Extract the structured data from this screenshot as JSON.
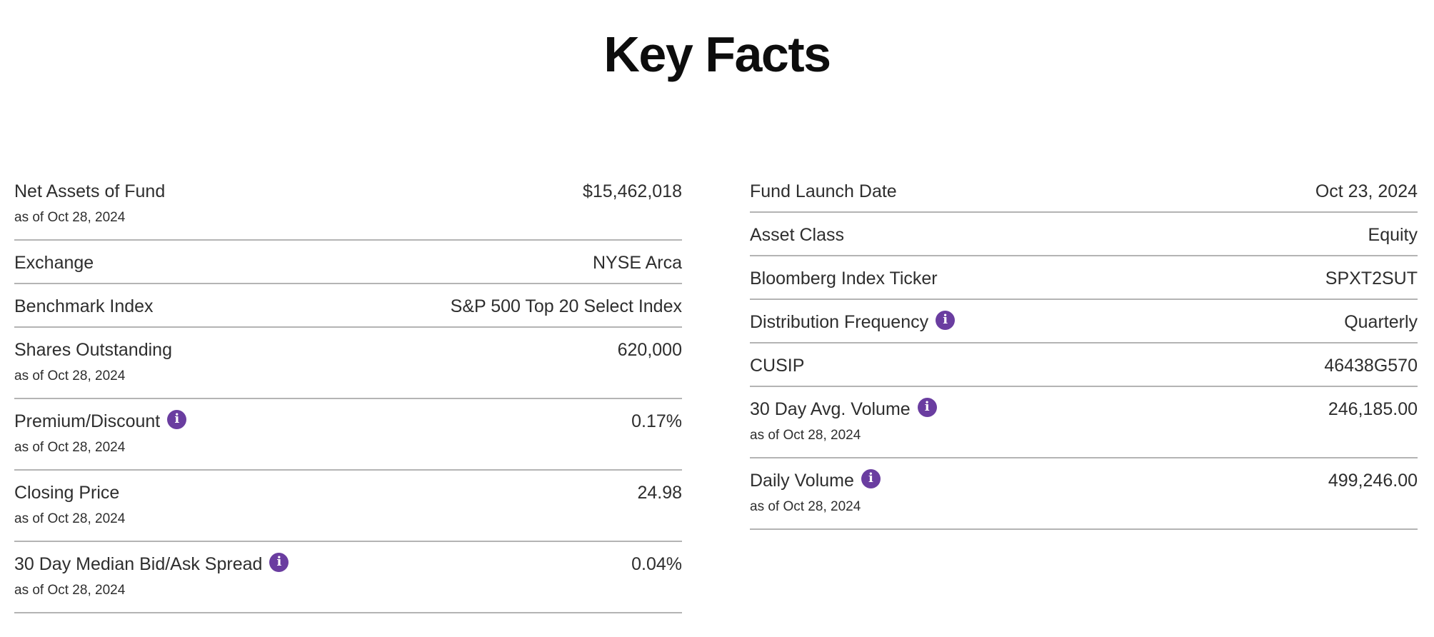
{
  "header": {
    "title": "Key Facts"
  },
  "colors": {
    "accent_purple": "#6a3da0",
    "divider": "#b4b4b4",
    "text": "#2e2e2e"
  },
  "icons": {
    "info_glyph": "i"
  },
  "columns": {
    "left": {
      "rows": [
        {
          "label": "Net Assets of Fund",
          "as_of": "as of Oct 28, 2024",
          "value": "$15,462,018"
        },
        {
          "label": "Exchange",
          "value": "NYSE Arca"
        },
        {
          "label": "Benchmark Index",
          "value": "S&P 500 Top 20 Select Index"
        },
        {
          "label": "Shares Outstanding",
          "as_of": "as of Oct 28, 2024",
          "value": "620,000"
        },
        {
          "label": "Premium/Discount",
          "has_info": true,
          "as_of": "as of Oct 28, 2024",
          "value": "0.17%"
        },
        {
          "label": "Closing Price",
          "as_of": "as of Oct 28, 2024",
          "value": "24.98"
        },
        {
          "label": "30 Day Median Bid/Ask Spread",
          "has_info": true,
          "as_of": "as of Oct 28, 2024",
          "value": "0.04%"
        }
      ]
    },
    "right": {
      "rows": [
        {
          "label": "Fund Launch Date",
          "value": "Oct 23, 2024"
        },
        {
          "label": "Asset Class",
          "value": "Equity"
        },
        {
          "label": "Bloomberg Index Ticker",
          "value": "SPXT2SUT"
        },
        {
          "label": "Distribution Frequency",
          "has_info": true,
          "value": "Quarterly"
        },
        {
          "label": "CUSIP",
          "value": "46438G570"
        },
        {
          "label": "30 Day Avg. Volume",
          "has_info": true,
          "as_of": "as of Oct 28, 2024",
          "value": "246,185.00"
        },
        {
          "label": "Daily Volume",
          "has_info": true,
          "as_of": "as of Oct 28, 2024",
          "value": "499,246.00"
        }
      ]
    }
  }
}
